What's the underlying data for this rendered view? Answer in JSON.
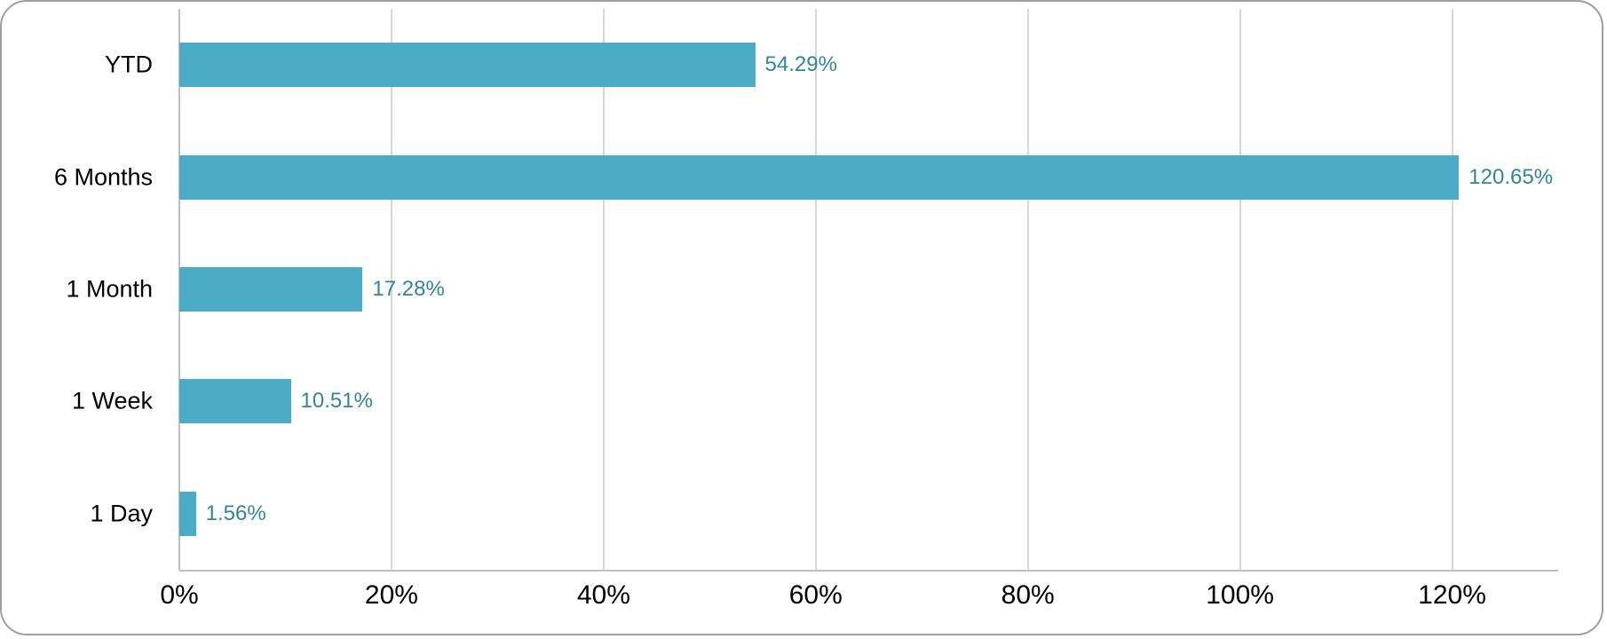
{
  "chart_data": {
    "type": "bar",
    "orientation": "horizontal",
    "title": "",
    "xlabel": "",
    "ylabel": "",
    "categories": [
      "YTD",
      "6 Months",
      "1 Month",
      "1 Week",
      "1 Day"
    ],
    "values": [
      54.29,
      120.65,
      17.28,
      10.51,
      1.56
    ],
    "value_labels": [
      "54.29%",
      "120.65%",
      "17.28%",
      "10.51%",
      "1.56%"
    ],
    "x_ticks": [
      "0%",
      "20%",
      "40%",
      "60%",
      "80%",
      "100%",
      "120%"
    ],
    "x_tick_values": [
      0,
      20,
      40,
      60,
      80,
      100,
      120
    ],
    "xlim": [
      0,
      130
    ],
    "grid": "vertical-gridlines",
    "legend_position": "none",
    "colors": {
      "bar_fill": "#4BACC6",
      "value_label_text": "#31859C",
      "gridline": "#D7D7D7",
      "axis_line": "#C0C0C0",
      "category_text": "#000000",
      "tick_text": "#000000",
      "background": "#FFFFFF",
      "card_border": "#A0A0A0"
    }
  }
}
